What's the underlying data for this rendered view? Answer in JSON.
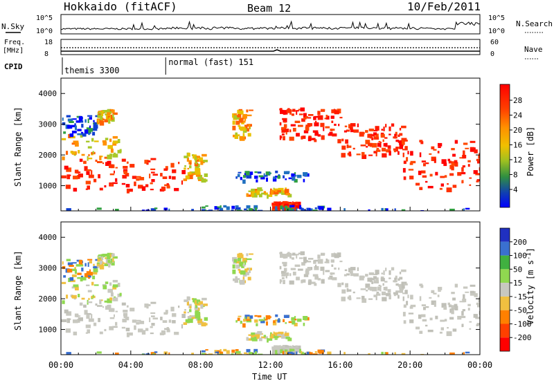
{
  "header": {
    "station": "Hokkaido (fitACF)",
    "beam": "Beam 12",
    "date": "10/Feb/2011"
  },
  "strips": {
    "nsky_label": "N.Sky",
    "nsky_ticks": [
      "10^5",
      "10^0"
    ],
    "nsearch_label": "N.Search",
    "nsearch_ticks": [
      "10^5",
      "10^0"
    ],
    "freq_label_1": "Freq.",
    "freq_label_2": "[MHz]",
    "freq_ticks": [
      "18",
      "8"
    ],
    "nave_label": "Nave",
    "nave_ticks": [
      "60",
      "0"
    ],
    "cpid_label": "CPID",
    "cpid_modes": [
      {
        "name": "themis 3300",
        "start_hour": 0
      },
      {
        "name": "normal (fast) 151",
        "start_hour": 6
      }
    ]
  },
  "chart_data": [
    {
      "type": "heatmap",
      "panel": "power",
      "ylabel": "Slant Range [km]",
      "xlabel": "",
      "ylim": [
        180,
        4500
      ],
      "yticks": [
        "1000",
        "2000",
        "3000",
        "4000"
      ],
      "colorbar_label": "Power [dB]",
      "colorbar_ticks": [
        "28",
        "24",
        "20",
        "16",
        "12",
        "8",
        "4"
      ],
      "colorbar_colors": [
        "#ff0000",
        "#ff3000",
        "#ff8000",
        "#ffc000",
        "#b8d000",
        "#30a030",
        "#0060c0",
        "#0000ff"
      ]
    },
    {
      "type": "heatmap",
      "panel": "velocity",
      "ylabel": "Slant Range [km]",
      "ylim": [
        180,
        4500
      ],
      "yticks": [
        "1000",
        "2000",
        "3000",
        "4000"
      ],
      "colorbar_label": "Velocity [m s^-1]",
      "colorbar_ticks": [
        "200",
        "100",
        "50",
        "15",
        "-15",
        "-50",
        "-100",
        "-200"
      ],
      "colorbar_colors": [
        "#2030c0",
        "#3a70d0",
        "#40b040",
        "#90d850",
        "#c8c8c0",
        "#f0c040",
        "#ff8000",
        "#ff4000",
        "#ff0000"
      ]
    }
  ],
  "xaxis": {
    "label": "Time UT",
    "ticks": [
      "00:00",
      "04:00",
      "08:00",
      "12:00",
      "16:00",
      "20:00",
      "00:00"
    ]
  }
}
